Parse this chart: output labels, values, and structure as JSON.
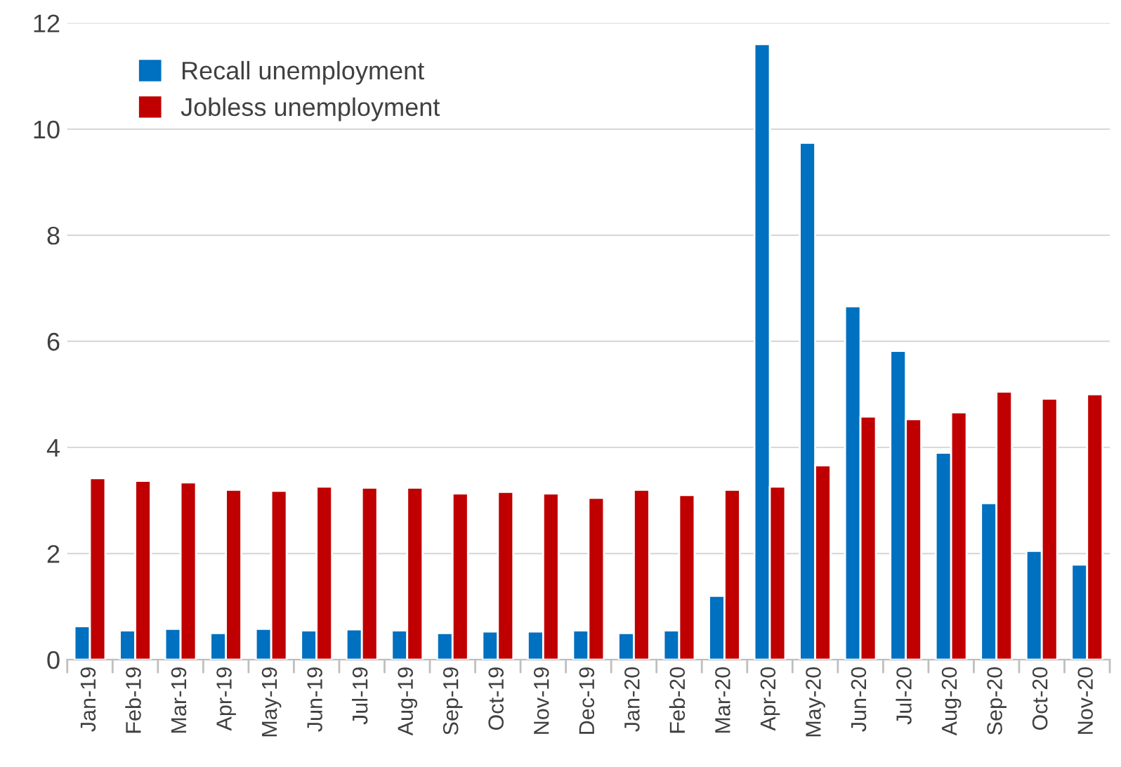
{
  "chart_data": {
    "type": "bar",
    "categories": [
      "Jan-19",
      "Feb-19",
      "Mar-19",
      "Apr-19",
      "May-19",
      "Jun-19",
      "Jul-19",
      "Aug-19",
      "Sep-19",
      "Oct-19",
      "Nov-19",
      "Dec-19",
      "Jan-20",
      "Feb-20",
      "Mar-20",
      "Apr-20",
      "May-20",
      "Jun-20",
      "Jul-20",
      "Aug-20",
      "Sep-20",
      "Oct-20",
      "Nov-20"
    ],
    "series": [
      {
        "name": "Recall unemployment",
        "color": "#0070c0",
        "values": [
          0.63,
          0.55,
          0.58,
          0.5,
          0.58,
          0.55,
          0.57,
          0.55,
          0.5,
          0.53,
          0.53,
          0.55,
          0.5,
          0.55,
          1.2,
          11.6,
          9.74,
          6.66,
          5.82,
          3.9,
          2.95,
          2.05,
          1.79
        ]
      },
      {
        "name": "Jobless unemployment",
        "color": "#c00000",
        "values": [
          3.42,
          3.37,
          3.34,
          3.2,
          3.18,
          3.26,
          3.24,
          3.24,
          3.13,
          3.16,
          3.13,
          3.05,
          3.2,
          3.1,
          3.2,
          3.26,
          3.66,
          4.58,
          4.53,
          4.66,
          5.05,
          4.92,
          5.0
        ]
      }
    ],
    "ylim": [
      0,
      12
    ],
    "yticks": [
      0,
      2,
      4,
      6,
      8,
      10,
      12
    ],
    "grid": "y",
    "legend": "top left"
  }
}
